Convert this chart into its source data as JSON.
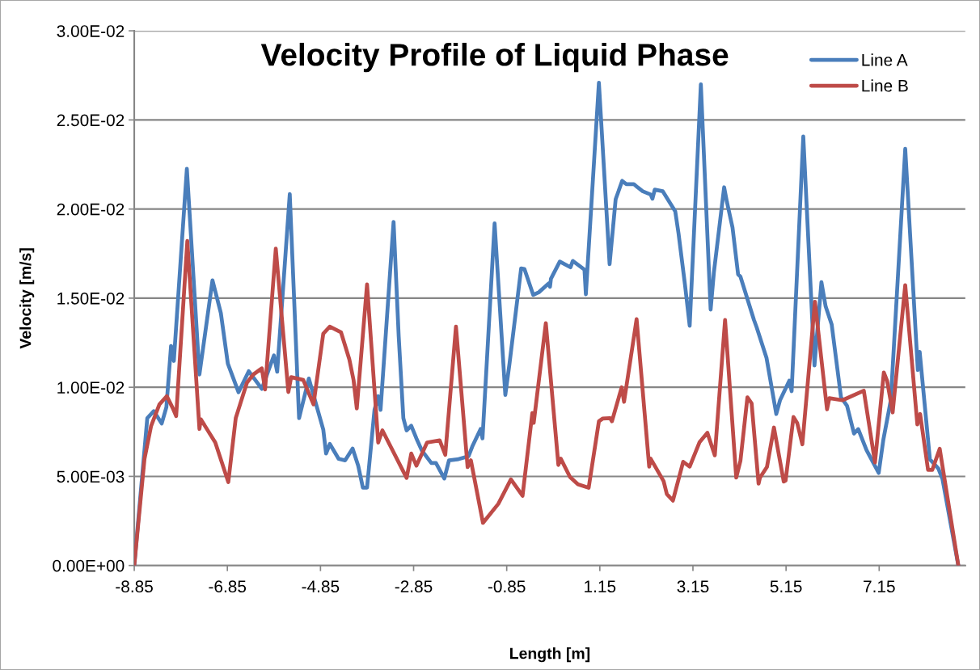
{
  "chart_data": {
    "type": "line",
    "title": "Velocity Profile of Liquid Phase",
    "xlabel": "Length [m]",
    "ylabel": "Velocity [m/s]",
    "xlim": [
      -8.85,
      9.0
    ],
    "xticks": [
      -8.85,
      -6.85,
      -4.85,
      -2.85,
      -0.85,
      1.15,
      3.15,
      5.15,
      7.15
    ],
    "ylim": [
      0,
      0.03
    ],
    "yticks": [
      {
        "value": 0,
        "label": "0.00E+00"
      },
      {
        "value": 0.005,
        "label": "5.00E-03"
      },
      {
        "value": 0.01,
        "label": "1.00E-02"
      },
      {
        "value": 0.015,
        "label": "1.50E-02"
      },
      {
        "value": 0.02,
        "label": "2.00E-02"
      },
      {
        "value": 0.025,
        "label": "2.50E-02"
      },
      {
        "value": 0.03,
        "label": "3.00E-02"
      }
    ],
    "grid": "y",
    "legend": "top right",
    "series": [
      {
        "name": "Line A",
        "color": "#4a7ebb",
        "x": [
          -8.85,
          -8.57,
          -8.43,
          -8.26,
          -8.16,
          -8.06,
          -8.0,
          -7.72,
          -7.45,
          -7.17,
          -6.99,
          -6.84,
          -6.61,
          -6.39,
          -6.11,
          -5.85,
          -5.78,
          -5.51,
          -5.31,
          -5.1,
          -4.79,
          -4.73,
          -4.65,
          -4.46,
          -4.32,
          -4.16,
          -4.04,
          -3.94,
          -3.85,
          -3.69,
          -3.61,
          -3.56,
          -3.28,
          -3.17,
          -3.07,
          -3.0,
          -2.9,
          -2.79,
          -2.67,
          -2.47,
          -2.37,
          -2.19,
          -2.09,
          -1.91,
          -1.67,
          -1.59,
          -1.41,
          -1.37,
          -1.11,
          -0.88,
          -0.79,
          -0.54,
          -0.47,
          -0.28,
          -0.16,
          0.05,
          0.08,
          0.1,
          0.29,
          0.52,
          0.57,
          0.82,
          0.85,
          1.13,
          1.36,
          1.49,
          1.63,
          1.72,
          1.88,
          1.96,
          2.07,
          2.24,
          2.28,
          2.33,
          2.5,
          2.77,
          2.84,
          2.98,
          3.08,
          3.32,
          3.53,
          3.6,
          3.82,
          3.88,
          4.0,
          4.12,
          4.17,
          4.46,
          4.52,
          4.73,
          4.94,
          5.02,
          5.22,
          5.27,
          5.52,
          5.76,
          5.91,
          6.0,
          6.13,
          6.33,
          6.46,
          6.61,
          6.7,
          6.88,
          7.14,
          7.24,
          7.4,
          7.71,
          7.98,
          8.02,
          8.24,
          8.42,
          8.51,
          8.85
        ],
        "values": [
          0,
          0.00827,
          0.00866,
          0.00797,
          0.00888,
          0.01232,
          0.01148,
          0.02226,
          0.01072,
          0.016,
          0.01416,
          0.01133,
          0.00972,
          0.0109,
          0.00991,
          0.01179,
          0.01087,
          0.02084,
          0.00827,
          0.01049,
          0.00762,
          0.00628,
          0.00682,
          0.00598,
          0.0059,
          0.00656,
          0.0056,
          0.00437,
          0.00437,
          0.00873,
          0.0095,
          0.00873,
          0.01928,
          0.01286,
          0.00827,
          0.00758,
          0.00784,
          0.00713,
          0.00644,
          0.00575,
          0.00575,
          0.00488,
          0.0059,
          0.00595,
          0.00613,
          0.00667,
          0.00766,
          0.00713,
          0.0192,
          0.00957,
          0.01133,
          0.01667,
          0.01664,
          0.01518,
          0.01533,
          0.01582,
          0.01564,
          0.01609,
          0.01705,
          0.01673,
          0.01709,
          0.0166,
          0.01522,
          0.02709,
          0.01691,
          0.02055,
          0.02158,
          0.0214,
          0.0214,
          0.02122,
          0.021,
          0.02082,
          0.02058,
          0.02109,
          0.021,
          0.01987,
          0.01864,
          0.01573,
          0.01345,
          0.027,
          0.01436,
          0.01645,
          0.02122,
          0.0204,
          0.01896,
          0.01633,
          0.01621,
          0.01378,
          0.01335,
          0.01165,
          0.0085,
          0.00927,
          0.01037,
          0.00978,
          0.02407,
          0.01122,
          0.0159,
          0.01454,
          0.01352,
          0.00944,
          0.00896,
          0.0074,
          0.00765,
          0.00646,
          0.00519,
          0.00706,
          0.00927,
          0.02338,
          0.01097,
          0.01199,
          0.00595,
          0.00544,
          0.00485,
          0
        ]
      },
      {
        "name": "Line B",
        "color": "#be4b48",
        "x": [
          -8.85,
          -8.63,
          -8.49,
          -8.31,
          -8.15,
          -8.02,
          -7.95,
          -7.71,
          -7.45,
          -7.42,
          -7.11,
          -6.83,
          -6.67,
          -6.43,
          -6.29,
          -6.11,
          -6.04,
          -5.81,
          -5.54,
          -5.48,
          -5.22,
          -5.0,
          -4.79,
          -4.65,
          -4.41,
          -4.23,
          -4.14,
          -4.07,
          -3.85,
          -3.61,
          -3.52,
          -3.0,
          -2.9,
          -2.79,
          -2.56,
          -2.29,
          -2.17,
          -1.94,
          -1.69,
          -1.62,
          -1.36,
          -1.03,
          -0.76,
          -0.51,
          -0.3,
          -0.27,
          -0.01,
          0.26,
          0.31,
          0.51,
          0.68,
          0.91,
          1.13,
          1.21,
          1.37,
          1.41,
          1.62,
          1.67,
          1.94,
          2.21,
          2.24,
          2.52,
          2.59,
          2.72,
          2.94,
          3.08,
          3.29,
          3.46,
          3.62,
          3.84,
          4.08,
          4.17,
          4.32,
          4.41,
          4.56,
          4.59,
          4.74,
          4.89,
          5.1,
          5.14,
          5.31,
          5.39,
          5.5,
          5.77,
          6.03,
          6.08,
          6.36,
          6.82,
          7.06,
          7.25,
          7.32,
          7.44,
          7.71,
          7.97,
          8.03,
          8.2,
          8.29,
          8.45,
          8.85
        ],
        "values": [
          0,
          0.00598,
          0.00781,
          0.00904,
          0.0095,
          0.00881,
          0.00838,
          0.01821,
          0.00766,
          0.0082,
          0.0069,
          0.00468,
          0.00827,
          0.01026,
          0.01072,
          0.01106,
          0.00988,
          0.01778,
          0.00973,
          0.01057,
          0.01041,
          0.00904,
          0.01301,
          0.0134,
          0.01309,
          0.01156,
          0.01041,
          0.00881,
          0.01577,
          0.0069,
          0.00758,
          0.00491,
          0.00628,
          0.0056,
          0.0069,
          0.00702,
          0.00621,
          0.0134,
          0.00552,
          0.0059,
          0.00239,
          0.00346,
          0.00483,
          0.00391,
          0.00855,
          0.008,
          0.0136,
          0.00564,
          0.006,
          0.00496,
          0.00455,
          0.00436,
          0.00809,
          0.00824,
          0.00827,
          0.00809,
          0.01,
          0.00918,
          0.01382,
          0.00555,
          0.006,
          0.00473,
          0.004,
          0.00364,
          0.00582,
          0.00555,
          0.00691,
          0.00745,
          0.00618,
          0.01378,
          0.00493,
          0.00587,
          0.00944,
          0.0091,
          0.00459,
          0.00493,
          0.00553,
          0.00774,
          0.00471,
          0.00476,
          0.00833,
          0.00799,
          0.0068,
          0.0148,
          0.00876,
          0.00939,
          0.00927,
          0.00981,
          0.00578,
          0.01083,
          0.01037,
          0.00859,
          0.01573,
          0.00791,
          0.0085,
          0.00536,
          0.00536,
          0.00655,
          0
        ]
      }
    ]
  }
}
